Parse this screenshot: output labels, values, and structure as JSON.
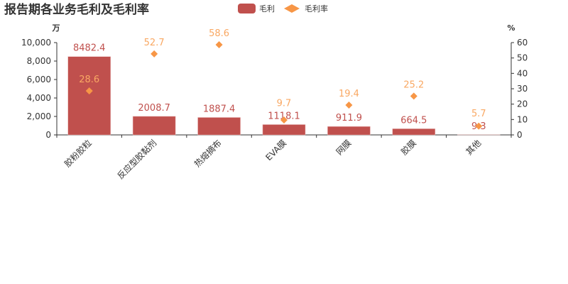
{
  "chart_data": {
    "type": "bar",
    "title": "报告期各业务毛利及毛利率",
    "categories": [
      "胶粉胶粒",
      "反应型胶黏剂",
      "热熔摘布",
      "EVA膜",
      "网膜",
      "胶膜",
      "其他"
    ],
    "series": [
      {
        "name": "毛利",
        "type": "bar",
        "axis": "left",
        "values": [
          8482.4,
          2008.7,
          1887.4,
          1118.1,
          911.9,
          664.5,
          9.3
        ],
        "color": "#c0504d"
      },
      {
        "name": "毛利率",
        "type": "scatter",
        "axis": "right",
        "values": [
          28.6,
          52.7,
          58.6,
          9.7,
          19.4,
          25.2,
          5.7
        ],
        "color": "#f79646"
      }
    ],
    "ylabel": "万",
    "ylabel_right": "%",
    "ylim": [
      0,
      10000
    ],
    "ylim_right": [
      0,
      60
    ],
    "yticks": [
      "0",
      "2,000",
      "4,000",
      "6,000",
      "8,000",
      "10,000"
    ],
    "yticks_right": [
      "0",
      "10",
      "20",
      "30",
      "40",
      "50",
      "60"
    ],
    "legend": "top-center",
    "grid": false
  }
}
